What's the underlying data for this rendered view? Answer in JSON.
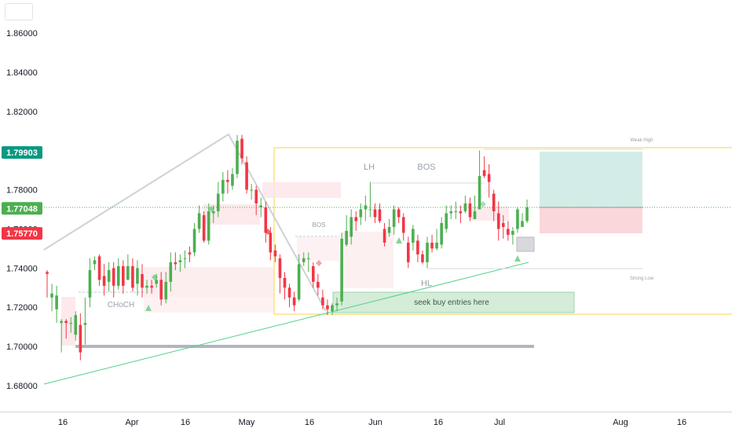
{
  "chart_data": {
    "type": "candlestick",
    "title": "",
    "y_axis": {
      "ticks": [
        "1.86000",
        "1.84000",
        "1.82000",
        "1.80000",
        "1.78000",
        "1.76000",
        "1.74000",
        "1.72000",
        "1.70000",
        "1.68000"
      ],
      "tick_values": [
        1.86,
        1.84,
        1.82,
        1.8,
        1.78,
        1.76,
        1.74,
        1.72,
        1.7,
        1.68
      ],
      "range": [
        1.671,
        1.872
      ]
    },
    "x_axis": {
      "ticks": [
        "16",
        "Apr",
        "16",
        "May",
        "16",
        "Jun",
        "16",
        "Jul",
        "Aug",
        "16"
      ]
    },
    "price_tags": [
      {
        "label": "1.79903",
        "value": 1.79903,
        "color": "#089981"
      },
      {
        "label": "1.77048",
        "value": 1.77048,
        "color": "#4caf50"
      },
      {
        "label": "1.75770",
        "value": 1.7577,
        "color": "#f23645"
      }
    ],
    "annotations": [
      "CHoCH",
      "BOS",
      "LH",
      "BOS",
      "HL",
      "Weak High",
      "Strong Low"
    ],
    "zone_label": "seek buy entries here",
    "candles": [
      [
        1.738,
        1.737,
        1.739,
        1.725
      ],
      [
        1.725,
        1.727,
        1.732,
        1.718
      ],
      [
        1.719,
        1.726,
        1.731,
        1.712
      ],
      [
        1.712,
        1.713,
        1.714,
        1.697
      ],
      [
        1.713,
        1.712,
        1.714,
        1.704
      ],
      [
        1.712,
        1.712,
        1.715,
        1.707
      ],
      [
        1.706,
        1.716,
        1.718,
        1.703
      ],
      [
        1.711,
        1.697,
        1.717,
        1.693
      ],
      [
        1.711,
        1.712,
        1.725,
        1.701
      ],
      [
        1.725,
        1.739,
        1.745,
        1.72
      ],
      [
        1.742,
        1.744,
        1.746,
        1.739
      ],
      [
        1.746,
        1.734,
        1.747,
        1.731
      ],
      [
        1.736,
        1.731,
        1.742,
        1.726
      ],
      [
        1.733,
        1.739,
        1.743,
        1.728
      ],
      [
        1.74,
        1.731,
        1.743,
        1.725
      ],
      [
        1.731,
        1.741,
        1.745,
        1.729
      ],
      [
        1.741,
        1.731,
        1.744,
        1.727
      ],
      [
        1.734,
        1.741,
        1.747,
        1.734
      ],
      [
        1.741,
        1.73,
        1.745,
        1.728
      ],
      [
        1.732,
        1.74,
        1.744,
        1.726
      ],
      [
        1.737,
        1.73,
        1.742,
        1.725
      ],
      [
        1.73,
        1.731,
        1.734,
        1.727
      ],
      [
        1.731,
        1.73,
        1.734,
        1.727
      ],
      [
        1.732,
        1.734,
        1.737,
        1.73
      ],
      [
        1.734,
        1.724,
        1.738,
        1.721
      ],
      [
        1.724,
        1.733,
        1.738,
        1.722
      ],
      [
        1.733,
        1.743,
        1.748,
        1.728
      ],
      [
        1.743,
        1.742,
        1.748,
        1.739
      ],
      [
        1.743,
        1.744,
        1.747,
        1.738
      ],
      [
        1.745,
        1.745,
        1.749,
        1.74
      ],
      [
        1.748,
        1.747,
        1.751,
        1.743
      ],
      [
        1.748,
        1.76,
        1.763,
        1.746
      ],
      [
        1.76,
        1.768,
        1.772,
        1.758
      ],
      [
        1.767,
        1.754,
        1.769,
        1.753
      ],
      [
        1.754,
        1.769,
        1.773,
        1.752
      ],
      [
        1.768,
        1.769,
        1.772,
        1.763
      ],
      [
        1.769,
        1.778,
        1.784,
        1.766
      ],
      [
        1.778,
        1.785,
        1.789,
        1.774
      ],
      [
        1.785,
        1.784,
        1.79,
        1.778
      ],
      [
        1.782,
        1.788,
        1.791,
        1.78
      ],
      [
        1.788,
        1.805,
        1.808,
        1.786
      ],
      [
        1.806,
        1.796,
        1.808,
        1.793
      ],
      [
        1.794,
        1.78,
        1.797,
        1.778
      ],
      [
        1.78,
        1.78,
        1.783,
        1.775
      ],
      [
        1.78,
        1.773,
        1.782,
        1.767
      ],
      [
        1.771,
        1.772,
        1.776,
        1.766
      ],
      [
        1.771,
        1.758,
        1.774,
        1.753
      ],
      [
        1.758,
        1.748,
        1.761,
        1.744
      ],
      [
        1.749,
        1.746,
        1.752,
        1.743
      ],
      [
        1.745,
        1.735,
        1.747,
        1.727
      ],
      [
        1.735,
        1.73,
        1.738,
        1.724
      ],
      [
        1.73,
        1.725,
        1.732,
        1.72
      ],
      [
        1.725,
        1.721,
        1.728,
        1.718
      ],
      [
        1.724,
        1.742,
        1.747,
        1.723
      ],
      [
        1.743,
        1.745,
        1.748,
        1.741
      ],
      [
        1.745,
        1.745,
        1.748,
        1.738
      ],
      [
        1.741,
        1.733,
        1.743,
        1.73
      ],
      [
        1.733,
        1.73,
        1.737,
        1.726
      ],
      [
        1.725,
        1.721,
        1.729,
        1.719
      ],
      [
        1.721,
        1.719,
        1.724,
        1.716
      ],
      [
        1.718,
        1.721,
        1.722,
        1.716
      ],
      [
        1.721,
        1.722,
        1.725,
        1.718
      ],
      [
        1.723,
        1.755,
        1.758,
        1.721
      ],
      [
        1.752,
        1.759,
        1.767,
        1.751
      ],
      [
        1.756,
        1.766,
        1.77,
        1.752
      ],
      [
        1.766,
        1.764,
        1.769,
        1.759
      ],
      [
        1.766,
        1.77,
        1.773,
        1.762
      ],
      [
        1.77,
        1.772,
        1.777,
        1.764
      ],
      [
        1.77,
        1.77,
        1.784,
        1.766
      ],
      [
        1.77,
        1.766,
        1.773,
        1.763
      ],
      [
        1.77,
        1.764,
        1.773,
        1.763
      ],
      [
        1.76,
        1.753,
        1.763,
        1.751
      ],
      [
        1.758,
        1.761,
        1.765,
        1.756
      ],
      [
        1.761,
        1.77,
        1.772,
        1.757
      ],
      [
        1.77,
        1.766,
        1.771,
        1.763
      ],
      [
        1.766,
        1.758,
        1.768,
        1.754
      ],
      [
        1.753,
        1.743,
        1.756,
        1.74
      ],
      [
        1.753,
        1.76,
        1.762,
        1.749
      ],
      [
        1.754,
        1.747,
        1.757,
        1.743
      ],
      [
        1.747,
        1.743,
        1.749,
        1.742
      ],
      [
        1.743,
        1.753,
        1.756,
        1.74
      ],
      [
        1.753,
        1.75,
        1.757,
        1.748
      ],
      [
        1.75,
        1.753,
        1.76,
        1.749
      ],
      [
        1.752,
        1.763,
        1.766,
        1.75
      ],
      [
        1.76,
        1.768,
        1.772,
        1.758
      ],
      [
        1.768,
        1.769,
        1.772,
        1.765
      ],
      [
        1.769,
        1.769,
        1.774,
        1.765
      ],
      [
        1.769,
        1.768,
        1.772,
        1.763
      ],
      [
        1.769,
        1.773,
        1.777,
        1.768
      ],
      [
        1.773,
        1.766,
        1.776,
        1.764
      ],
      [
        1.765,
        1.769,
        1.777,
        1.765
      ],
      [
        1.77,
        1.787,
        1.8,
        1.77
      ],
      [
        1.79,
        1.787,
        1.797,
        1.786
      ],
      [
        1.788,
        1.784,
        1.793,
        1.776
      ],
      [
        1.778,
        1.769,
        1.78,
        1.764
      ],
      [
        1.768,
        1.76,
        1.774,
        1.754
      ],
      [
        1.763,
        1.761,
        1.767,
        1.755
      ],
      [
        1.76,
        1.757,
        1.764,
        1.754
      ],
      [
        1.757,
        1.759,
        1.761,
        1.752
      ],
      [
        1.76,
        1.77,
        1.771,
        1.758
      ],
      [
        1.761,
        1.764,
        1.768,
        1.761
      ],
      [
        1.764,
        1.771,
        1.775,
        1.763
      ]
    ]
  }
}
